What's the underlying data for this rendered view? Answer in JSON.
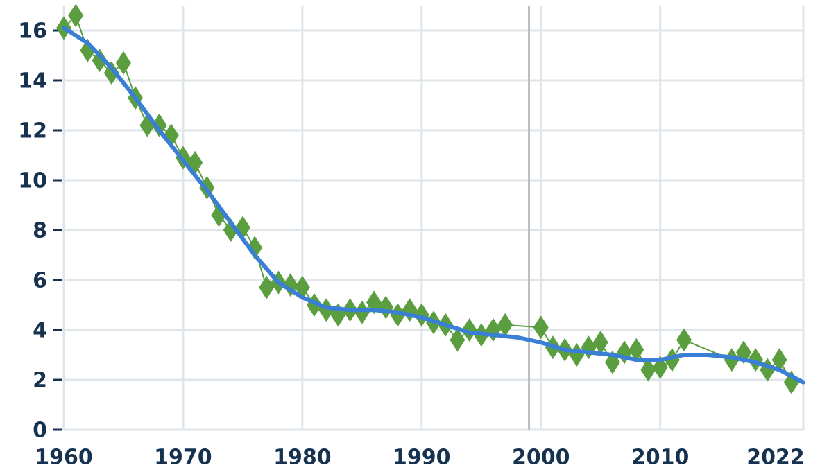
{
  "chart_data": {
    "type": "line",
    "xlim": [
      1960,
      2022
    ],
    "xticks": [
      1960,
      1970,
      1980,
      1990,
      2000,
      2010,
      2022
    ],
    "ylim": [
      0,
      17
    ],
    "yticks": [
      0,
      2,
      4,
      6,
      8,
      10,
      12,
      14,
      16
    ],
    "grid": true,
    "reference_line_x": 1999,
    "reference_line_color": "#bdbdbd",
    "series": [
      {
        "color": "#5b9e3f",
        "marker": "diamond",
        "x": [
          1960,
          1961,
          1962,
          1963,
          1964,
          1965,
          1966,
          1967,
          1968,
          1969,
          1970,
          1971,
          1972,
          1973,
          1974,
          1975,
          1976,
          1977,
          1978,
          1979,
          1980,
          1981,
          1982,
          1983,
          1984,
          1985,
          1986,
          1987,
          1988,
          1989,
          1990,
          1991,
          1992,
          1993,
          1994,
          1995,
          1996,
          1997,
          2000,
          2001,
          2002,
          2003,
          2004,
          2005,
          2006,
          2007,
          2008,
          2009,
          2010,
          2011,
          2012,
          2016,
          2017,
          2018,
          2019,
          2020,
          2021
        ],
        "values": [
          16.1,
          16.6,
          15.2,
          14.8,
          14.3,
          14.7,
          13.3,
          12.2,
          12.2,
          11.8,
          10.9,
          10.7,
          9.7,
          8.6,
          8.0,
          8.1,
          7.3,
          5.7,
          5.9,
          5.8,
          5.7,
          5.0,
          4.8,
          4.6,
          4.8,
          4.7,
          5.1,
          4.9,
          4.6,
          4.8,
          4.6,
          4.3,
          4.2,
          3.6,
          4.0,
          3.8,
          4.0,
          4.2,
          4.1,
          3.3,
          3.2,
          3.0,
          3.3,
          3.5,
          2.7,
          3.1,
          3.2,
          2.4,
          2.5,
          2.8,
          3.6,
          2.8,
          3.1,
          2.8,
          2.4,
          2.8,
          1.9
        ]
      },
      {
        "color": "#3a7fd6",
        "marker": "none",
        "x": [
          1960,
          1962,
          1964,
          1966,
          1968,
          1970,
          1972,
          1974,
          1976,
          1978,
          1980,
          1982,
          1984,
          1986,
          1988,
          1990,
          1992,
          1994,
          1996,
          1998,
          2000,
          2002,
          2004,
          2006,
          2008,
          2010,
          2012,
          2014,
          2016,
          2018,
          2020,
          2022
        ],
        "values": [
          16.1,
          15.5,
          14.5,
          13.3,
          12.0,
          10.8,
          9.6,
          8.3,
          7.0,
          5.9,
          5.3,
          4.9,
          4.8,
          4.8,
          4.7,
          4.5,
          4.2,
          3.9,
          3.8,
          3.7,
          3.5,
          3.2,
          3.1,
          3.0,
          2.8,
          2.8,
          3.0,
          3.0,
          2.9,
          2.7,
          2.4,
          1.9
        ]
      }
    ]
  }
}
